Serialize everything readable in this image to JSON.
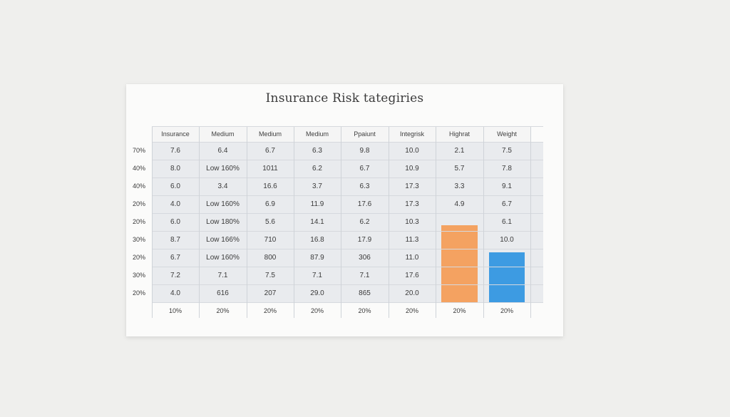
{
  "title": "Insurance Risk tategiries",
  "headers": [
    "Insurance",
    "Medium",
    "Medium",
    "Medium",
    "Ppaiunt",
    "Integrisk",
    "Highrat",
    "Weight"
  ],
  "row_labels": [
    "70%",
    "40%",
    "40%",
    "20%",
    "20%",
    "30%",
    "20%",
    "30%",
    "20%"
  ],
  "rows": [
    [
      "7.6",
      "6.4",
      "6.7",
      "6.3",
      "9.8",
      "10.0",
      "2.1",
      "7.5"
    ],
    [
      "8.0",
      "Low 160%",
      "1011",
      "6.2",
      "6.7",
      "10.9",
      "5.7",
      "7.8"
    ],
    [
      "6.0",
      "3.4",
      "16.6",
      "3.7",
      "6.3",
      "17.3",
      "3.3",
      "9.1"
    ],
    [
      "4.0",
      "Low 160%",
      "6.9",
      "11.9",
      "17.6",
      "17.3",
      "4.9",
      "6.7"
    ],
    [
      "6.0",
      "Low 180%",
      "5.6",
      "14.1",
      "6.2",
      "10.3",
      "",
      "6.1"
    ],
    [
      "8.7",
      "Low 166%",
      "710",
      "16.8",
      "17.9",
      "11.3",
      "",
      "10.0"
    ],
    [
      "6.7",
      "Low 160%",
      "800",
      "87.9",
      "306",
      "11.0",
      "",
      ""
    ],
    [
      "7.2",
      "7.1",
      "7.5",
      "7.1",
      "7.1",
      "17.6",
      "",
      ""
    ],
    [
      "4.0",
      "616",
      "207",
      "29.0",
      "865",
      "20.0",
      "",
      ""
    ]
  ],
  "footer": [
    "10%",
    "20%",
    "20%",
    "20%",
    "20%",
    "20%",
    "20%",
    "20%"
  ],
  "bars": [
    {
      "column": 6,
      "color": "#f4a261",
      "fill": 0.48
    },
    {
      "column": 7,
      "color": "#3d9be2",
      "fill": 0.31
    }
  ]
}
